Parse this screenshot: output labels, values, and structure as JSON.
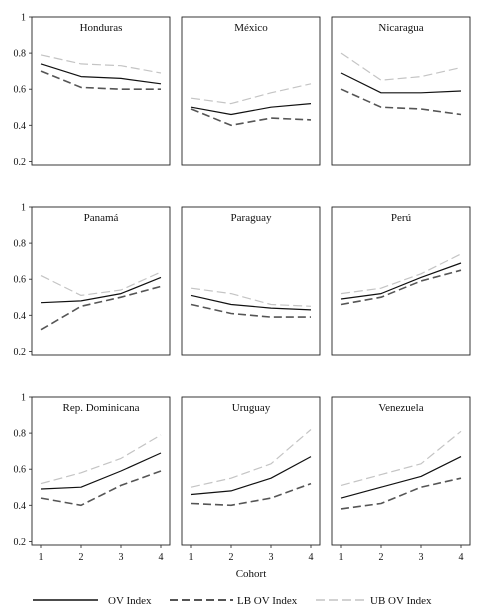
{
  "chart_data": {
    "type": "line",
    "xlabel": "Cohort",
    "x_ticks": [
      "1",
      "2",
      "3",
      "4"
    ],
    "y_ticks": [
      "0.2",
      "0.4",
      "0.6",
      "0.8",
      "1"
    ],
    "ylim": [
      0.18,
      1.0
    ],
    "x": [
      1,
      2,
      3,
      4
    ],
    "legend": {
      "placement": "bottom",
      "entries": [
        {
          "key": "ov",
          "label": "OV Index"
        },
        {
          "key": "lb",
          "label": "LB OV Index"
        },
        {
          "key": "ub",
          "label": "UB OV Index"
        }
      ]
    },
    "styles": {
      "ov": {
        "color": "#111111"
      },
      "lb": {
        "color": "#555555"
      },
      "ub": {
        "color": "#c4c4c4"
      }
    },
    "panels": [
      {
        "title": "Honduras",
        "series": {
          "ov": [
            0.74,
            0.67,
            0.66,
            0.63
          ],
          "lb": [
            0.7,
            0.61,
            0.6,
            0.6
          ],
          "ub": [
            0.79,
            0.74,
            0.73,
            0.69
          ]
        }
      },
      {
        "title": "México",
        "series": {
          "ov": [
            0.5,
            0.46,
            0.5,
            0.52
          ],
          "lb": [
            0.49,
            0.4,
            0.44,
            0.43
          ],
          "ub": [
            0.55,
            0.52,
            0.58,
            0.63
          ]
        }
      },
      {
        "title": "Nicaragua",
        "series": {
          "ov": [
            0.69,
            0.58,
            0.58,
            0.59
          ],
          "lb": [
            0.6,
            0.5,
            0.49,
            0.46
          ],
          "ub": [
            0.8,
            0.65,
            0.67,
            0.72
          ]
        }
      },
      {
        "title": "Panamá",
        "series": {
          "ov": [
            0.47,
            0.48,
            0.52,
            0.61
          ],
          "lb": [
            0.32,
            0.45,
            0.5,
            0.56
          ],
          "ub": [
            0.62,
            0.51,
            0.54,
            0.64
          ]
        }
      },
      {
        "title": "Paraguay",
        "series": {
          "ov": [
            0.51,
            0.46,
            0.44,
            0.43
          ],
          "lb": [
            0.46,
            0.41,
            0.39,
            0.39
          ],
          "ub": [
            0.55,
            0.52,
            0.46,
            0.45
          ]
        }
      },
      {
        "title": "Perú",
        "series": {
          "ov": [
            0.49,
            0.52,
            0.61,
            0.69
          ],
          "lb": [
            0.46,
            0.5,
            0.59,
            0.65
          ],
          "ub": [
            0.52,
            0.55,
            0.63,
            0.74
          ]
        }
      },
      {
        "title": "Rep. Dominicana",
        "series": {
          "ov": [
            0.49,
            0.5,
            0.59,
            0.69
          ],
          "lb": [
            0.44,
            0.4,
            0.51,
            0.59
          ],
          "ub": [
            0.52,
            0.58,
            0.66,
            0.79
          ]
        }
      },
      {
        "title": "Uruguay",
        "series": {
          "ov": [
            0.46,
            0.48,
            0.55,
            0.67
          ],
          "lb": [
            0.41,
            0.4,
            0.44,
            0.52
          ],
          "ub": [
            0.5,
            0.55,
            0.63,
            0.82
          ]
        }
      },
      {
        "title": "Venezuela",
        "series": {
          "ov": [
            0.44,
            0.5,
            0.56,
            0.67
          ],
          "lb": [
            0.38,
            0.41,
            0.5,
            0.55
          ],
          "ub": [
            0.51,
            0.57,
            0.63,
            0.81
          ]
        }
      }
    ]
  }
}
